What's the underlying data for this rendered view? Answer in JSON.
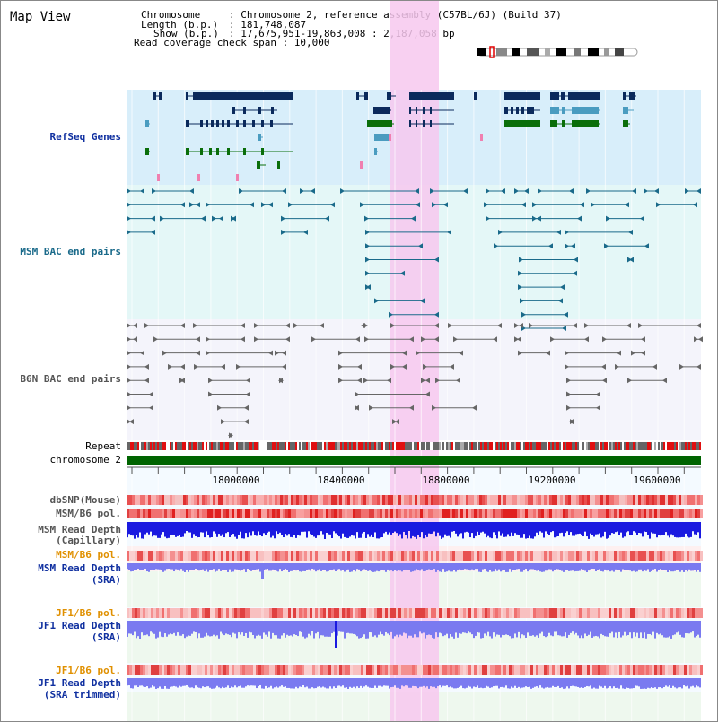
{
  "page": {
    "title": "Map View"
  },
  "info": {
    "line1_key": "Chromosome",
    "line1_val": ": Chromosome 2, reference assembly (C57BL/6J) (Build 37)",
    "line2_key": "Length (b.p.)",
    "line2_val": ": 181,748,087",
    "line3_key": "Show (b.p.)",
    "line3_val": ": 17,675,951-19,863,008 : 2,187,058 bp",
    "line4": "Read coverage check span : 10,000"
  },
  "tracks": {
    "refseq": "RefSeq Genes",
    "msm_bac": "MSM BAC end pairs",
    "b6n_bac": "B6N BAC end pairs",
    "repeat": "Repeat",
    "chromosome": "chromosome 2",
    "dbsnp": "dbSNP(Mouse)",
    "msm_b6_pol_1": "MSM/B6 pol.",
    "msm_depth_cap_1": "MSM Read Depth",
    "msm_depth_cap_2": "(Capillary)",
    "msm_b6_pol_2": "MSM/B6 pol.",
    "msm_depth_sra_1": "MSM Read Depth",
    "msm_depth_sra_2": "(SRA)",
    "jf1_b6_pol_1": "JF1/B6 pol.",
    "jf1_depth_sra_1": "JF1 Read Depth",
    "jf1_depth_sra_2": "(SRA)",
    "jf1_b6_pol_2": "JF1/B6 pol.",
    "jf1_depth_trim_1": "JF1 Read Depth",
    "jf1_depth_trim_2": "(SRA trimmed)"
  },
  "axis": {
    "ticks": [
      "18000000",
      "18400000",
      "18800000",
      "19200000",
      "19600000"
    ]
  },
  "colors": {
    "refseq_bg": "#d8eefa",
    "bac_bg": "#e4f7f7",
    "b6n_bg": "#f4f4fb",
    "highlight": "#f7c8ee",
    "gene_dark": "#0b2a5c",
    "gene_green": "#0a6e0a",
    "gene_teal": "#4a9cc0",
    "bac_line": "#1a6a8a",
    "b6n_line": "#666666",
    "chromosome_bar": "#006400",
    "label_blue": "#1030a0",
    "label_teal": "#1a6a8a",
    "label_orange": "#e09000",
    "depth_blue": "#1a1ae0",
    "depth_blue_light": "#7a7af0"
  }
}
